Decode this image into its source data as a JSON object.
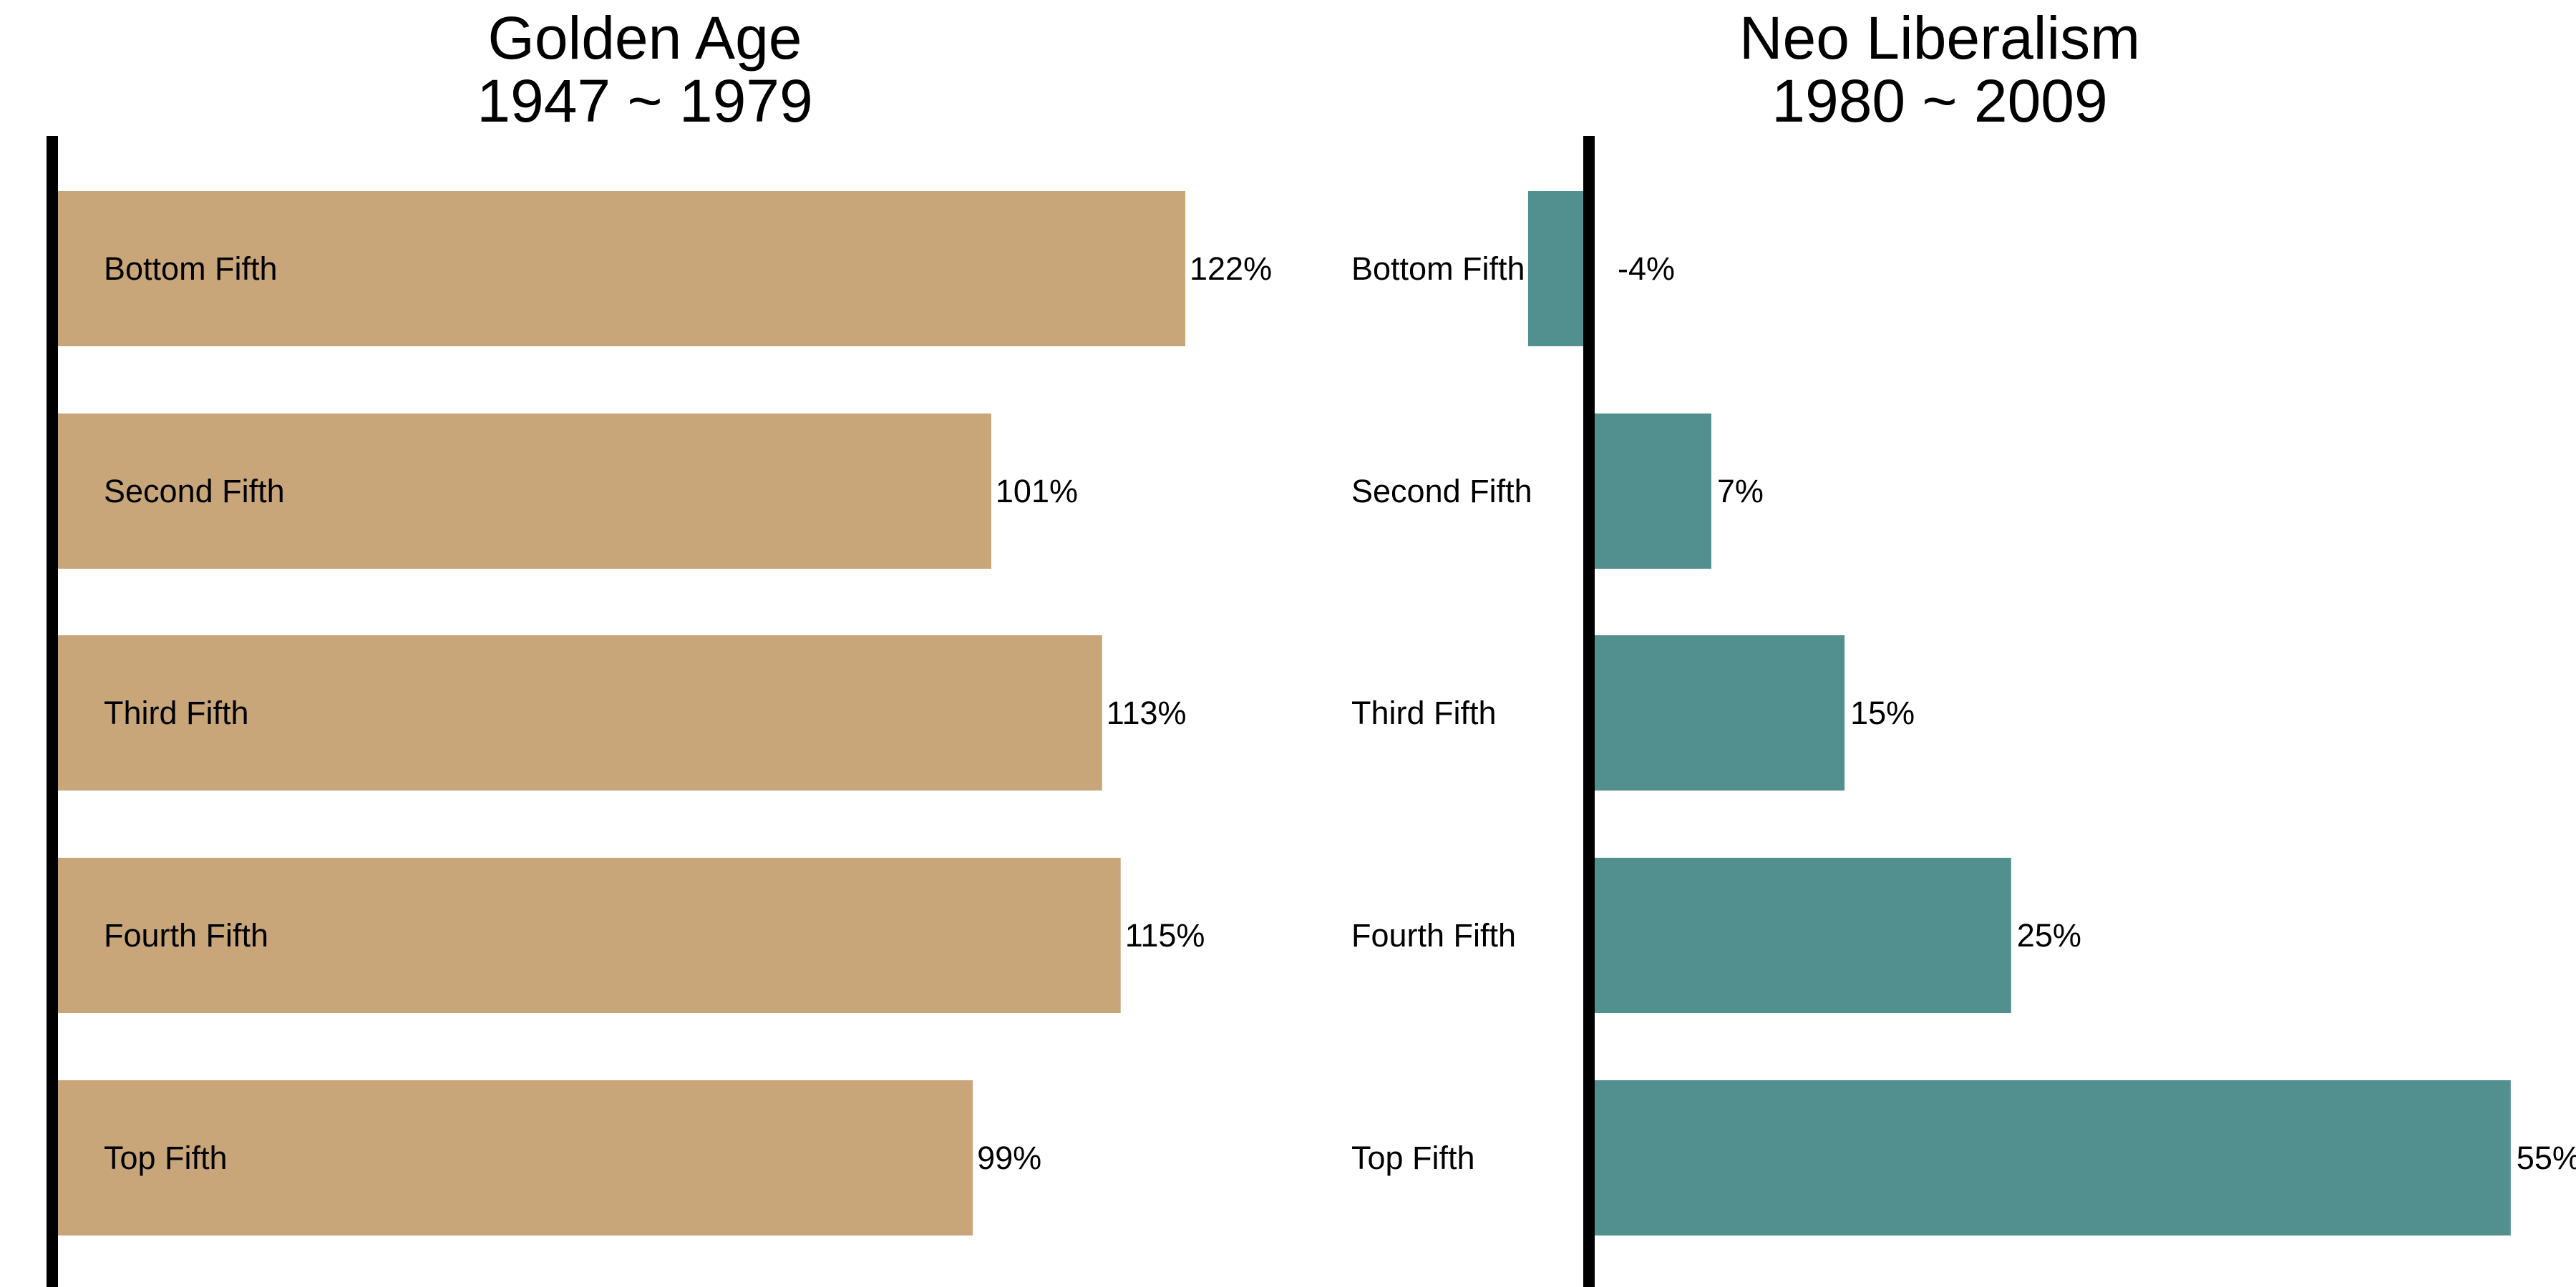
{
  "chart_data": [
    {
      "type": "bar",
      "orientation": "horizontal",
      "title": "Golden Age",
      "subtitle": "1947 ~ 1979",
      "categories": [
        "Bottom Fifth",
        "Second Fifth",
        "Third Fifth",
        "Fourth Fifth",
        "Top Fifth"
      ],
      "values": [
        122,
        101,
        113,
        115,
        99
      ],
      "value_labels": [
        "122%",
        "101%",
        "113%",
        "115%",
        "99%"
      ],
      "color": "#C8A679",
      "xlim": [
        0,
        140
      ],
      "grid": false,
      "legend": "none"
    },
    {
      "type": "bar",
      "orientation": "horizontal",
      "title": "Neo Liberalism",
      "subtitle": "1980 ~ 2009",
      "categories": [
        "Bottom Fifth",
        "Second Fifth",
        "Third Fifth",
        "Fourth Fifth",
        "Top Fifth"
      ],
      "values": [
        -4,
        7,
        15,
        25,
        55
      ],
      "value_labels": [
        "-4%",
        "7%",
        "15%",
        "25%",
        "55%"
      ],
      "color": "#528F8F",
      "xlim": [
        0,
        55
      ],
      "grid": false,
      "legend": "none"
    }
  ]
}
